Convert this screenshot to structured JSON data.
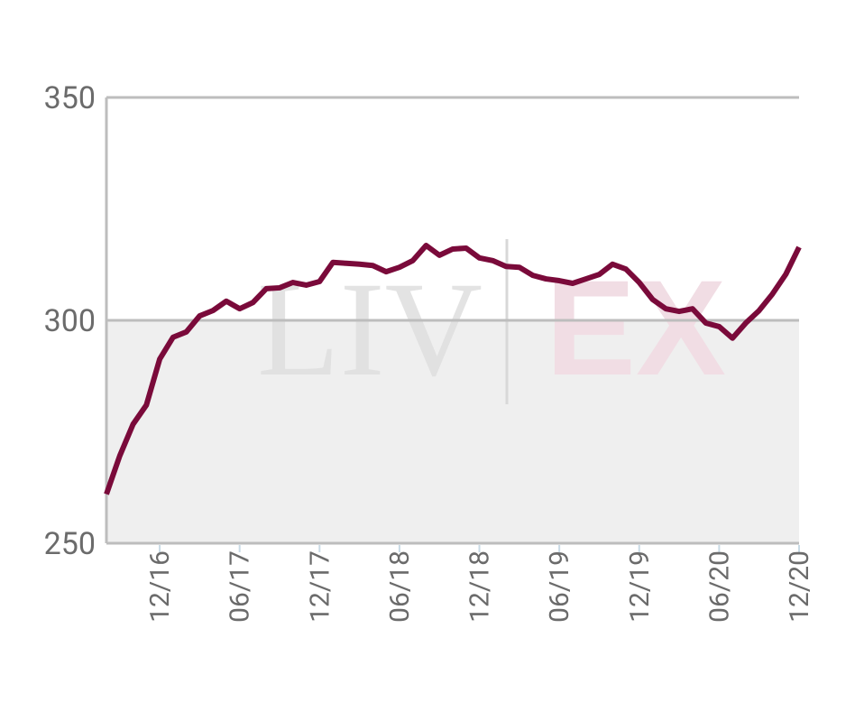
{
  "chart_data": {
    "type": "line",
    "categories": [
      null,
      null,
      null,
      null,
      "12/16",
      null,
      null,
      null,
      null,
      null,
      "06/17",
      null,
      null,
      null,
      null,
      null,
      "12/17",
      null,
      null,
      null,
      null,
      null,
      "06/18",
      null,
      null,
      null,
      null,
      null,
      "12/18",
      null,
      null,
      null,
      null,
      null,
      "06/19",
      null,
      null,
      null,
      null,
      null,
      "12/19",
      null,
      null,
      null,
      null,
      null,
      "06/20",
      null,
      null,
      null,
      null,
      null,
      "12/20"
    ],
    "series": [
      {
        "color": "#7a0a3a",
        "values": [
          261,
          269.6,
          276.7,
          281,
          291.3,
          296.2,
          297.4,
          301,
          302.2,
          304.3,
          302.6,
          304,
          307.1,
          307.3,
          308.5,
          307.9,
          308.7,
          313,
          312.8,
          312.6,
          312.3,
          310.9,
          311.9,
          313.4,
          316.8,
          314.6,
          316,
          316.2,
          314,
          313.4,
          312.1,
          311.9,
          310.1,
          309.3,
          308.9,
          308.3,
          309.3,
          310.3,
          312.6,
          311.5,
          308.5,
          304.7,
          302.6,
          302,
          302.6,
          299.4,
          298.6,
          296,
          299.4,
          302.2,
          305.9,
          310.3,
          316.4
        ]
      }
    ],
    "ylim": [
      250,
      350
    ],
    "yticks": [
      250,
      300,
      350
    ],
    "grid": true,
    "shade_below": 300,
    "watermark": [
      "LIV",
      "EX"
    ]
  }
}
